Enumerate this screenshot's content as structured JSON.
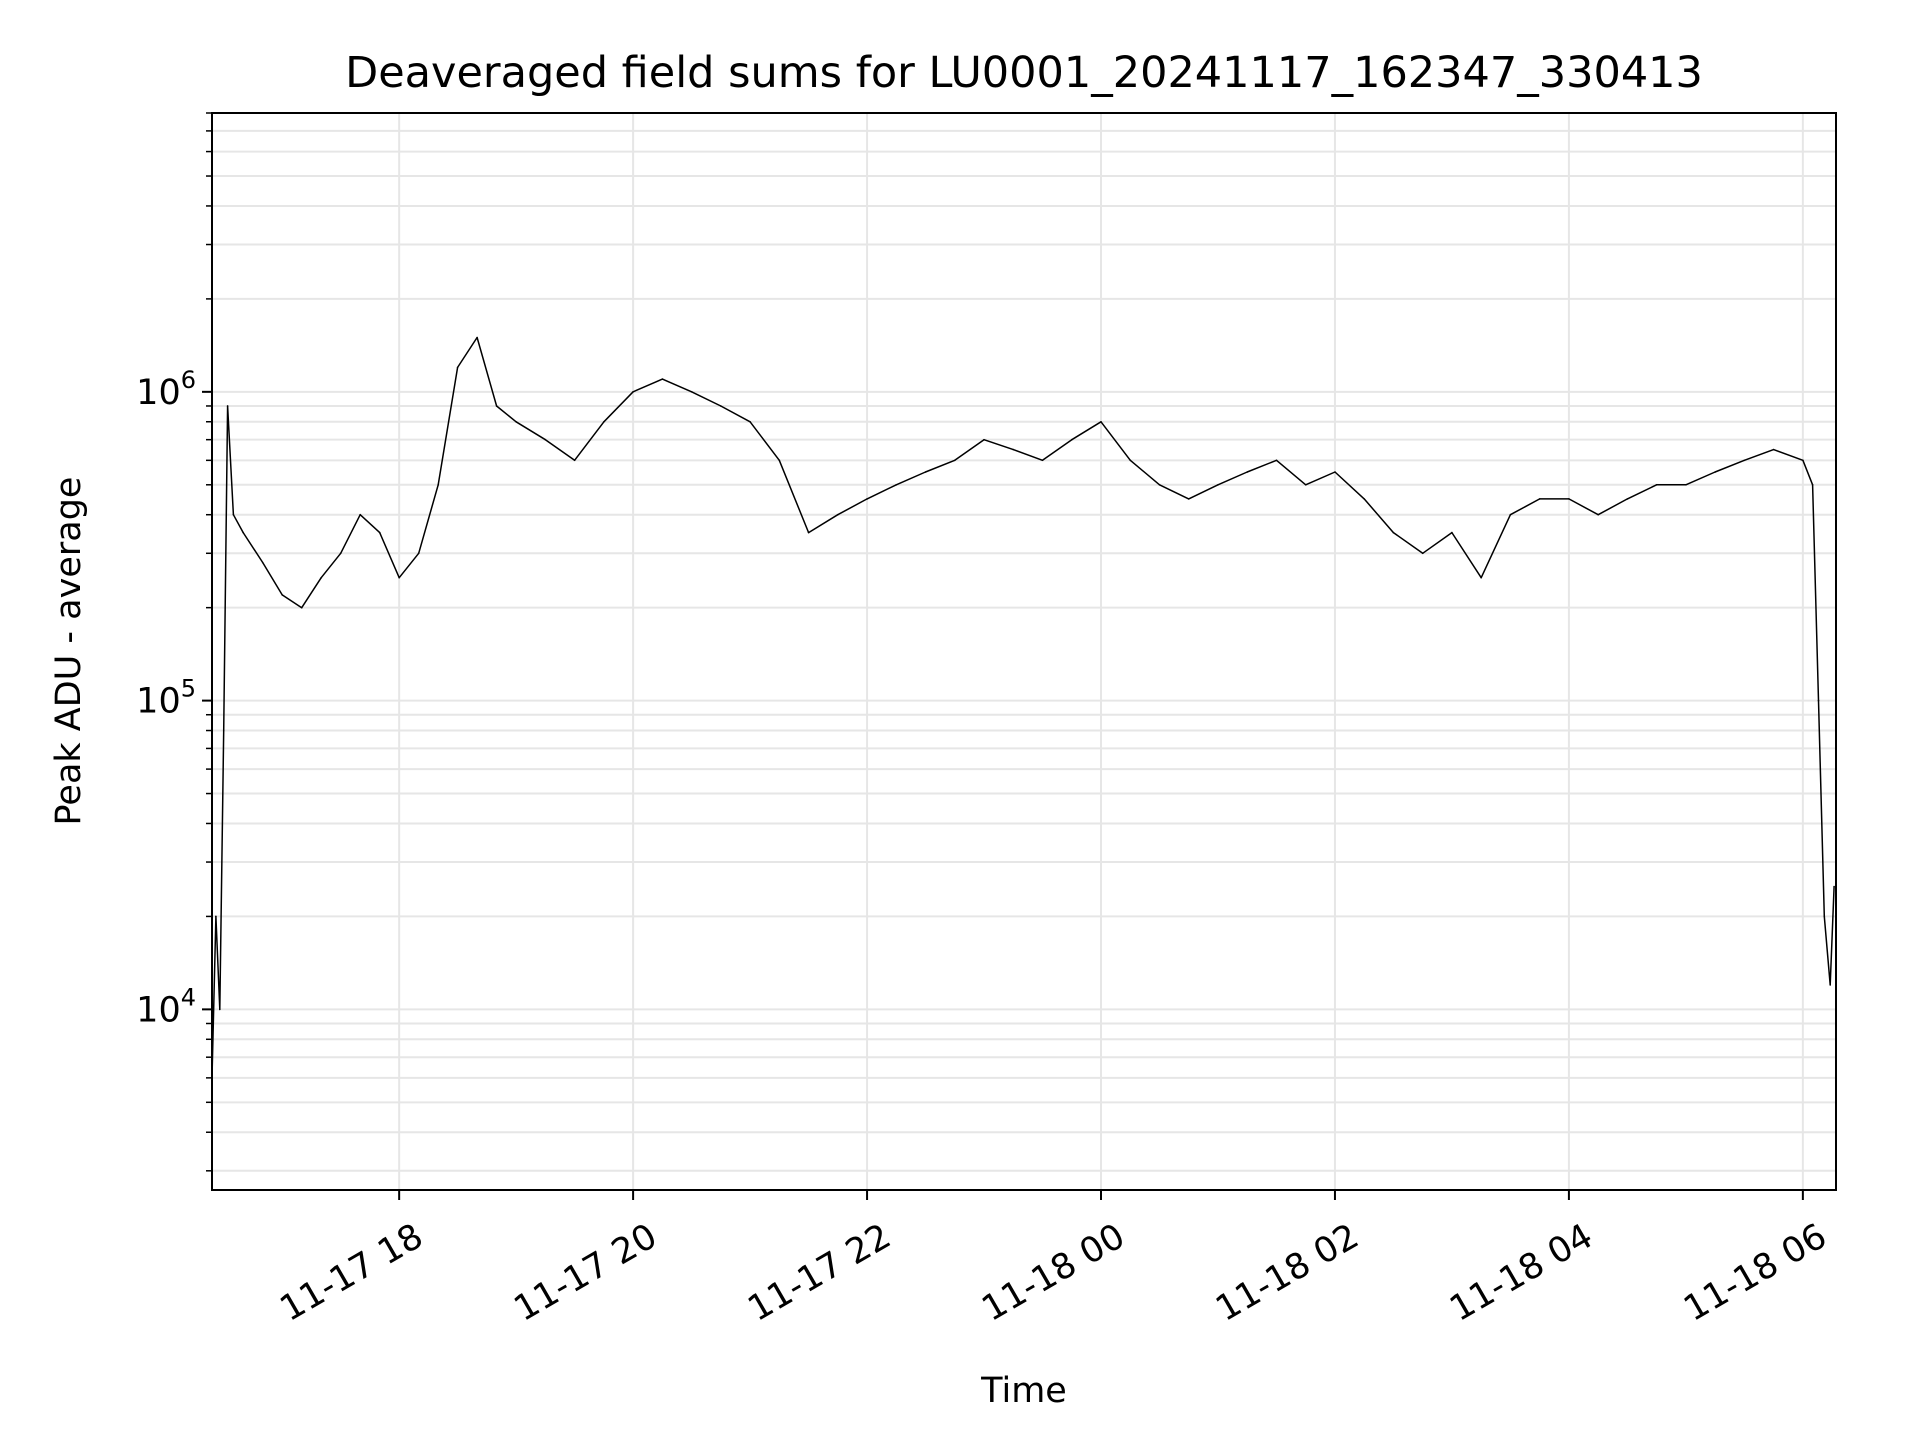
{
  "chart_data": {
    "type": "line",
    "title": "Deaveraged field sums for LU0001_20241117_162347_330413",
    "xlabel": "Time",
    "ylabel": "Peak ADU - average",
    "yscale": "log",
    "ylim": [
      2600,
      8000000
    ],
    "xlim": [
      "2024-11-17T16:24",
      "2024-11-18T06:17"
    ],
    "x_ticks": [
      {
        "value": "2024-11-17T18:00",
        "label": "11-17 18"
      },
      {
        "value": "2024-11-17T20:00",
        "label": "11-17 20"
      },
      {
        "value": "2024-11-17T22:00",
        "label": "11-17 22"
      },
      {
        "value": "2024-11-18T00:00",
        "label": "11-18 00"
      },
      {
        "value": "2024-11-18T02:00",
        "label": "11-18 02"
      },
      {
        "value": "2024-11-18T04:00",
        "label": "11-18 04"
      },
      {
        "value": "2024-11-18T06:00",
        "label": "11-18 06"
      }
    ],
    "y_ticks": [
      {
        "value": 10000,
        "base": "10",
        "exp": "4"
      },
      {
        "value": 100000,
        "base": "10",
        "exp": "5"
      },
      {
        "value": 1000000,
        "base": "10",
        "exp": "6"
      }
    ],
    "grid": true,
    "series": [
      {
        "color": "#000000",
        "x": [
          "2024-11-17T16:24",
          "2024-11-17T16:26",
          "2024-11-17T16:28",
          "2024-11-17T16:30",
          "2024-11-17T16:32",
          "2024-11-17T16:35",
          "2024-11-17T16:40",
          "2024-11-17T16:50",
          "2024-11-17T17:00",
          "2024-11-17T17:10",
          "2024-11-17T17:20",
          "2024-11-17T17:30",
          "2024-11-17T17:40",
          "2024-11-17T17:50",
          "2024-11-17T18:00",
          "2024-11-17T18:10",
          "2024-11-17T18:20",
          "2024-11-17T18:30",
          "2024-11-17T18:40",
          "2024-11-17T18:50",
          "2024-11-17T19:00",
          "2024-11-17T19:15",
          "2024-11-17T19:30",
          "2024-11-17T19:45",
          "2024-11-17T20:00",
          "2024-11-17T20:15",
          "2024-11-17T20:30",
          "2024-11-17T20:45",
          "2024-11-17T21:00",
          "2024-11-17T21:15",
          "2024-11-17T21:30",
          "2024-11-17T21:45",
          "2024-11-17T22:00",
          "2024-11-17T22:15",
          "2024-11-17T22:30",
          "2024-11-17T22:45",
          "2024-11-17T23:00",
          "2024-11-17T23:15",
          "2024-11-17T23:30",
          "2024-11-17T23:45",
          "2024-11-18T00:00",
          "2024-11-18T00:15",
          "2024-11-18T00:30",
          "2024-11-18T00:45",
          "2024-11-18T01:00",
          "2024-11-18T01:15",
          "2024-11-18T01:30",
          "2024-11-18T01:45",
          "2024-11-18T02:00",
          "2024-11-18T02:15",
          "2024-11-18T02:30",
          "2024-11-18T02:45",
          "2024-11-18T03:00",
          "2024-11-18T03:15",
          "2024-11-18T03:30",
          "2024-11-18T03:45",
          "2024-11-18T04:00",
          "2024-11-18T04:15",
          "2024-11-18T04:30",
          "2024-11-18T04:45",
          "2024-11-18T05:00",
          "2024-11-18T05:15",
          "2024-11-18T05:30",
          "2024-11-18T05:45",
          "2024-11-18T06:00",
          "2024-11-18T06:05",
          "2024-11-18T06:08",
          "2024-11-18T06:11",
          "2024-11-18T06:14",
          "2024-11-18T06:16"
        ],
        "y": [
          6000,
          20000,
          10000,
          80000,
          900000,
          400000,
          350000,
          280000,
          220000,
          200000,
          250000,
          300000,
          400000,
          350000,
          250000,
          300000,
          500000,
          1200000,
          1500000,
          900000,
          800000,
          700000,
          600000,
          800000,
          1000000,
          1100000,
          1000000,
          900000,
          800000,
          600000,
          350000,
          400000,
          450000,
          500000,
          550000,
          600000,
          700000,
          650000,
          600000,
          700000,
          800000,
          600000,
          500000,
          450000,
          500000,
          550000,
          600000,
          500000,
          550000,
          450000,
          350000,
          300000,
          350000,
          250000,
          400000,
          450000,
          450000,
          400000,
          450000,
          500000,
          500000,
          550000,
          600000,
          650000,
          600000,
          500000,
          100000,
          20000,
          12000,
          25000
        ]
      }
    ]
  }
}
